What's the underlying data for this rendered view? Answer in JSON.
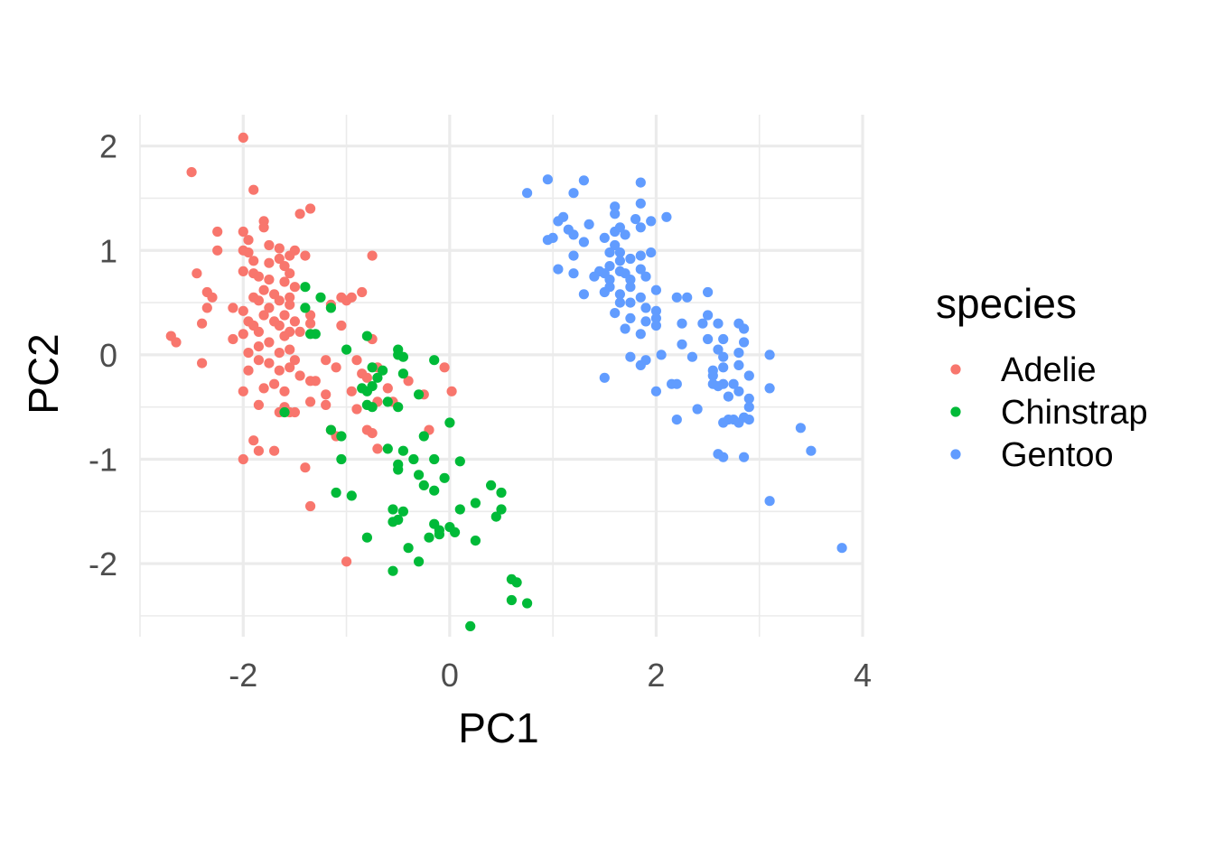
{
  "chart_data": {
    "type": "scatter",
    "xlabel": "PC1",
    "ylabel": "PC2",
    "xlim": [
      -3.0,
      4.0
    ],
    "ylim": [
      -2.7,
      2.3
    ],
    "x_ticks": [
      -2,
      0,
      2,
      4
    ],
    "y_ticks": [
      -2,
      -1,
      0,
      1,
      2
    ],
    "x_tick_labels": [
      "-2",
      "0",
      "2",
      "4"
    ],
    "y_tick_labels": [
      "-2",
      "-1",
      "0",
      "1",
      "2"
    ],
    "grid": true,
    "legend": {
      "title": "species",
      "position": "right"
    },
    "series": [
      {
        "name": "Adelie",
        "color": "#F8766D",
        "points": [
          [
            -2.0,
            2.08
          ],
          [
            -2.5,
            1.75
          ],
          [
            -1.9,
            1.58
          ],
          [
            -1.35,
            1.4
          ],
          [
            -1.45,
            1.35
          ],
          [
            -1.8,
            1.28
          ],
          [
            -1.8,
            1.22
          ],
          [
            -2.25,
            1.18
          ],
          [
            -2.0,
            1.18
          ],
          [
            -1.95,
            1.1
          ],
          [
            -1.75,
            1.05
          ],
          [
            -1.65,
            1.02
          ],
          [
            -2.0,
            1.0
          ],
          [
            -1.5,
            1.0
          ],
          [
            -2.25,
            1.0
          ],
          [
            -1.95,
            0.98
          ],
          [
            -1.55,
            0.95
          ],
          [
            -1.65,
            0.92
          ],
          [
            -1.4,
            0.95
          ],
          [
            -0.75,
            0.95
          ],
          [
            -1.9,
            0.9
          ],
          [
            -1.75,
            0.88
          ],
          [
            -1.6,
            0.85
          ],
          [
            -2.0,
            0.8
          ],
          [
            -1.9,
            0.78
          ],
          [
            -1.85,
            0.75
          ],
          [
            -1.55,
            0.78
          ],
          [
            -2.45,
            0.78
          ],
          [
            -1.75,
            0.72
          ],
          [
            -1.6,
            0.7
          ],
          [
            -1.8,
            0.62
          ],
          [
            -1.5,
            0.65
          ],
          [
            -1.7,
            0.58
          ],
          [
            -1.9,
            0.55
          ],
          [
            -2.35,
            0.6
          ],
          [
            -2.3,
            0.55
          ],
          [
            -1.85,
            0.52
          ],
          [
            -1.55,
            0.55
          ],
          [
            -1.65,
            0.52
          ],
          [
            -1.0,
            0.52
          ],
          [
            -1.05,
            0.55
          ],
          [
            -0.95,
            0.55
          ],
          [
            -0.85,
            0.6
          ],
          [
            -1.75,
            0.45
          ],
          [
            -1.55,
            0.48
          ],
          [
            -1.15,
            0.48
          ],
          [
            -2.1,
            0.45
          ],
          [
            -2.0,
            0.42
          ],
          [
            -2.35,
            0.45
          ],
          [
            -1.8,
            0.38
          ],
          [
            -1.6,
            0.38
          ],
          [
            -1.35,
            0.38
          ],
          [
            -1.95,
            0.32
          ],
          [
            -1.7,
            0.32
          ],
          [
            -1.5,
            0.32
          ],
          [
            -1.35,
            0.3
          ],
          [
            -1.9,
            0.28
          ],
          [
            -1.65,
            0.28
          ],
          [
            -1.05,
            0.28
          ],
          [
            -2.4,
            0.3
          ],
          [
            -1.85,
            0.22
          ],
          [
            -1.55,
            0.22
          ],
          [
            -1.45,
            0.22
          ],
          [
            -2.0,
            0.2
          ],
          [
            -1.6,
            0.18
          ],
          [
            -0.75,
            0.15
          ],
          [
            -2.7,
            0.18
          ],
          [
            -2.1,
            0.15
          ],
          [
            -1.75,
            0.12
          ],
          [
            -2.65,
            0.12
          ],
          [
            -1.85,
            0.08
          ],
          [
            -1.55,
            0.05
          ],
          [
            -1.95,
            0.02
          ],
          [
            -1.65,
            0.02
          ],
          [
            -1.85,
            -0.05
          ],
          [
            -1.5,
            -0.05
          ],
          [
            -1.2,
            -0.05
          ],
          [
            -0.9,
            -0.05
          ],
          [
            -1.75,
            -0.08
          ],
          [
            -1.55,
            -0.12
          ],
          [
            -2.4,
            -0.08
          ],
          [
            -1.95,
            -0.15
          ],
          [
            -1.65,
            -0.15
          ],
          [
            -1.1,
            -0.12
          ],
          [
            -0.85,
            -0.18
          ],
          [
            -0.7,
            -0.12
          ],
          [
            -1.45,
            -0.2
          ],
          [
            -1.35,
            -0.25
          ],
          [
            -1.7,
            -0.28
          ],
          [
            -1.8,
            -0.32
          ],
          [
            -1.3,
            -0.25
          ],
          [
            -0.8,
            -0.22
          ],
          [
            -0.4,
            -0.25
          ],
          [
            -0.05,
            -0.12
          ],
          [
            -1.6,
            -0.35
          ],
          [
            -1.2,
            -0.38
          ],
          [
            -0.95,
            -0.35
          ],
          [
            -0.6,
            -0.32
          ],
          [
            -2.0,
            -0.35
          ],
          [
            -0.55,
            -0.45
          ],
          [
            -0.25,
            -0.38
          ],
          [
            0.02,
            -0.35
          ],
          [
            -1.35,
            -0.45
          ],
          [
            -1.2,
            -0.48
          ],
          [
            -1.85,
            -0.48
          ],
          [
            -1.6,
            -0.5
          ],
          [
            -0.7,
            -0.45
          ],
          [
            -0.9,
            -0.52
          ],
          [
            -1.55,
            -0.55
          ],
          [
            -1.5,
            -0.55
          ],
          [
            -1.65,
            -0.55
          ],
          [
            -0.2,
            -0.72
          ],
          [
            -1.15,
            -0.72
          ],
          [
            -0.8,
            -0.72
          ],
          [
            -0.75,
            -0.75
          ],
          [
            -1.1,
            -0.78
          ],
          [
            -1.9,
            -0.82
          ],
          [
            -0.7,
            -0.9
          ],
          [
            -1.7,
            -0.92
          ],
          [
            -1.85,
            -0.92
          ],
          [
            -2.0,
            -1.0
          ],
          [
            -1.4,
            -1.08
          ],
          [
            -1.35,
            -1.45
          ],
          [
            -1.0,
            -1.98
          ]
        ]
      },
      {
        "name": "Chinstrap",
        "color": "#00BA38",
        "points": [
          [
            -1.4,
            0.65
          ],
          [
            -1.25,
            0.55
          ],
          [
            -1.4,
            0.45
          ],
          [
            -1.15,
            0.45
          ],
          [
            -1.35,
            0.2
          ],
          [
            -1.3,
            0.2
          ],
          [
            -0.8,
            0.18
          ],
          [
            -1.0,
            0.05
          ],
          [
            -0.5,
            0.05
          ],
          [
            -0.5,
            0.0
          ],
          [
            -0.45,
            -0.02
          ],
          [
            -0.15,
            -0.05
          ],
          [
            -0.75,
            -0.12
          ],
          [
            -0.65,
            -0.15
          ],
          [
            -0.7,
            -0.22
          ],
          [
            -0.45,
            -0.18
          ],
          [
            -0.75,
            -0.3
          ],
          [
            -0.85,
            -0.32
          ],
          [
            -0.8,
            -0.35
          ],
          [
            -0.3,
            -0.38
          ],
          [
            -0.6,
            -0.45
          ],
          [
            -0.8,
            -0.48
          ],
          [
            -0.75,
            -0.5
          ],
          [
            -0.5,
            -0.5
          ],
          [
            -1.6,
            -0.55
          ],
          [
            -0.0,
            -0.65
          ],
          [
            -1.15,
            -0.72
          ],
          [
            -1.05,
            -0.78
          ],
          [
            -0.25,
            -0.78
          ],
          [
            -0.6,
            -0.9
          ],
          [
            -0.45,
            -0.92
          ],
          [
            -0.35,
            -1.0
          ],
          [
            -1.05,
            -1.0
          ],
          [
            -0.15,
            -1.0
          ],
          [
            0.1,
            -1.02
          ],
          [
            -0.5,
            -1.05
          ],
          [
            -0.5,
            -1.1
          ],
          [
            -0.3,
            -1.15
          ],
          [
            -0.05,
            -1.18
          ],
          [
            -0.25,
            -1.25
          ],
          [
            0.4,
            -1.25
          ],
          [
            0.5,
            -1.32
          ],
          [
            -0.15,
            -1.3
          ],
          [
            -1.1,
            -1.32
          ],
          [
            -0.95,
            -1.35
          ],
          [
            0.25,
            -1.42
          ],
          [
            0.5,
            -1.48
          ],
          [
            -0.55,
            -1.48
          ],
          [
            -0.45,
            -1.5
          ],
          [
            0.1,
            -1.48
          ],
          [
            0.45,
            -1.55
          ],
          [
            -0.5,
            -1.58
          ],
          [
            -0.55,
            -1.6
          ],
          [
            -0.15,
            -1.62
          ],
          [
            0.0,
            -1.65
          ],
          [
            -0.1,
            -1.68
          ],
          [
            0.05,
            -1.7
          ],
          [
            -0.1,
            -1.72
          ],
          [
            -0.2,
            -1.75
          ],
          [
            -0.8,
            -1.75
          ],
          [
            0.25,
            -1.78
          ],
          [
            -0.4,
            -1.85
          ],
          [
            -0.3,
            -1.98
          ],
          [
            -0.55,
            -2.07
          ],
          [
            0.6,
            -2.15
          ],
          [
            0.65,
            -2.18
          ],
          [
            0.6,
            -2.35
          ],
          [
            0.75,
            -2.38
          ],
          [
            0.2,
            -2.6
          ]
        ]
      },
      {
        "name": "Gentoo",
        "color": "#619CFF",
        "points": [
          [
            0.95,
            1.68
          ],
          [
            1.3,
            1.67
          ],
          [
            0.75,
            1.55
          ],
          [
            1.2,
            1.55
          ],
          [
            1.85,
            1.65
          ],
          [
            1.6,
            1.42
          ],
          [
            1.85,
            1.45
          ],
          [
            1.6,
            1.35
          ],
          [
            1.1,
            1.32
          ],
          [
            1.35,
            1.25
          ],
          [
            1.05,
            1.28
          ],
          [
            1.8,
            1.3
          ],
          [
            1.95,
            1.28
          ],
          [
            2.1,
            1.32
          ],
          [
            1.15,
            1.2
          ],
          [
            1.2,
            1.15
          ],
          [
            1.5,
            1.12
          ],
          [
            1.6,
            1.18
          ],
          [
            1.7,
            1.15
          ],
          [
            1.65,
            1.22
          ],
          [
            1.85,
            1.22
          ],
          [
            1.0,
            1.12
          ],
          [
            1.3,
            1.08
          ],
          [
            0.95,
            1.1
          ],
          [
            1.6,
            1.05
          ],
          [
            1.55,
            0.98
          ],
          [
            1.65,
            0.98
          ],
          [
            1.2,
            0.95
          ],
          [
            1.85,
            0.95
          ],
          [
            1.75,
            0.92
          ],
          [
            1.95,
            0.98
          ],
          [
            1.65,
            0.9
          ],
          [
            1.55,
            0.85
          ],
          [
            1.45,
            0.8
          ],
          [
            1.5,
            0.78
          ],
          [
            1.7,
            0.78
          ],
          [
            1.4,
            0.75
          ],
          [
            1.55,
            0.72
          ],
          [
            1.85,
            0.82
          ],
          [
            1.75,
            0.72
          ],
          [
            1.65,
            0.8
          ],
          [
            1.9,
            0.75
          ],
          [
            1.05,
            0.82
          ],
          [
            1.2,
            0.78
          ],
          [
            1.55,
            0.65
          ],
          [
            1.75,
            0.65
          ],
          [
            1.5,
            0.6
          ],
          [
            1.65,
            0.58
          ],
          [
            1.85,
            0.55
          ],
          [
            1.3,
            0.58
          ],
          [
            2.0,
            0.62
          ],
          [
            2.2,
            0.55
          ],
          [
            2.3,
            0.55
          ],
          [
            1.65,
            0.5
          ],
          [
            1.75,
            0.5
          ],
          [
            1.9,
            0.45
          ],
          [
            2.0,
            0.42
          ],
          [
            2.5,
            0.6
          ],
          [
            2.5,
            0.38
          ],
          [
            1.6,
            0.4
          ],
          [
            1.75,
            0.35
          ],
          [
            1.9,
            0.32
          ],
          [
            2.0,
            0.35
          ],
          [
            2.25,
            0.3
          ],
          [
            2.45,
            0.3
          ],
          [
            2.6,
            0.3
          ],
          [
            2.8,
            0.3
          ],
          [
            2.85,
            0.25
          ],
          [
            2.0,
            0.28
          ],
          [
            1.7,
            0.25
          ],
          [
            1.85,
            0.2
          ],
          [
            2.5,
            0.15
          ],
          [
            2.65,
            0.15
          ],
          [
            2.25,
            0.1
          ],
          [
            2.85,
            0.12
          ],
          [
            2.6,
            0.05
          ],
          [
            2.8,
            0.02
          ],
          [
            2.05,
            0.0
          ],
          [
            2.35,
            -0.02
          ],
          [
            2.65,
            -0.02
          ],
          [
            3.1,
            0.0
          ],
          [
            1.75,
            -0.02
          ],
          [
            1.9,
            -0.05
          ],
          [
            1.85,
            -0.1
          ],
          [
            2.65,
            -0.12
          ],
          [
            2.8,
            -0.1
          ],
          [
            2.55,
            -0.15
          ],
          [
            2.55,
            -0.2
          ],
          [
            2.9,
            -0.2
          ],
          [
            1.5,
            -0.22
          ],
          [
            2.55,
            -0.28
          ],
          [
            2.65,
            -0.28
          ],
          [
            2.75,
            -0.28
          ],
          [
            2.8,
            -0.35
          ],
          [
            2.6,
            -0.3
          ],
          [
            2.15,
            -0.28
          ],
          [
            2.2,
            -0.28
          ],
          [
            3.1,
            -0.32
          ],
          [
            2.7,
            -0.4
          ],
          [
            2.9,
            -0.42
          ],
          [
            2.0,
            -0.35
          ],
          [
            2.9,
            -0.5
          ],
          [
            2.4,
            -0.52
          ],
          [
            2.85,
            -0.6
          ],
          [
            2.7,
            -0.62
          ],
          [
            2.75,
            -0.62
          ],
          [
            2.8,
            -0.65
          ],
          [
            2.9,
            -0.62
          ],
          [
            2.65,
            -0.65
          ],
          [
            2.2,
            -0.62
          ],
          [
            3.4,
            -0.7
          ],
          [
            3.5,
            -0.92
          ],
          [
            2.6,
            -0.95
          ],
          [
            2.65,
            -0.98
          ],
          [
            2.85,
            -0.98
          ],
          [
            3.1,
            -1.4
          ],
          [
            3.8,
            -1.85
          ]
        ]
      }
    ]
  }
}
